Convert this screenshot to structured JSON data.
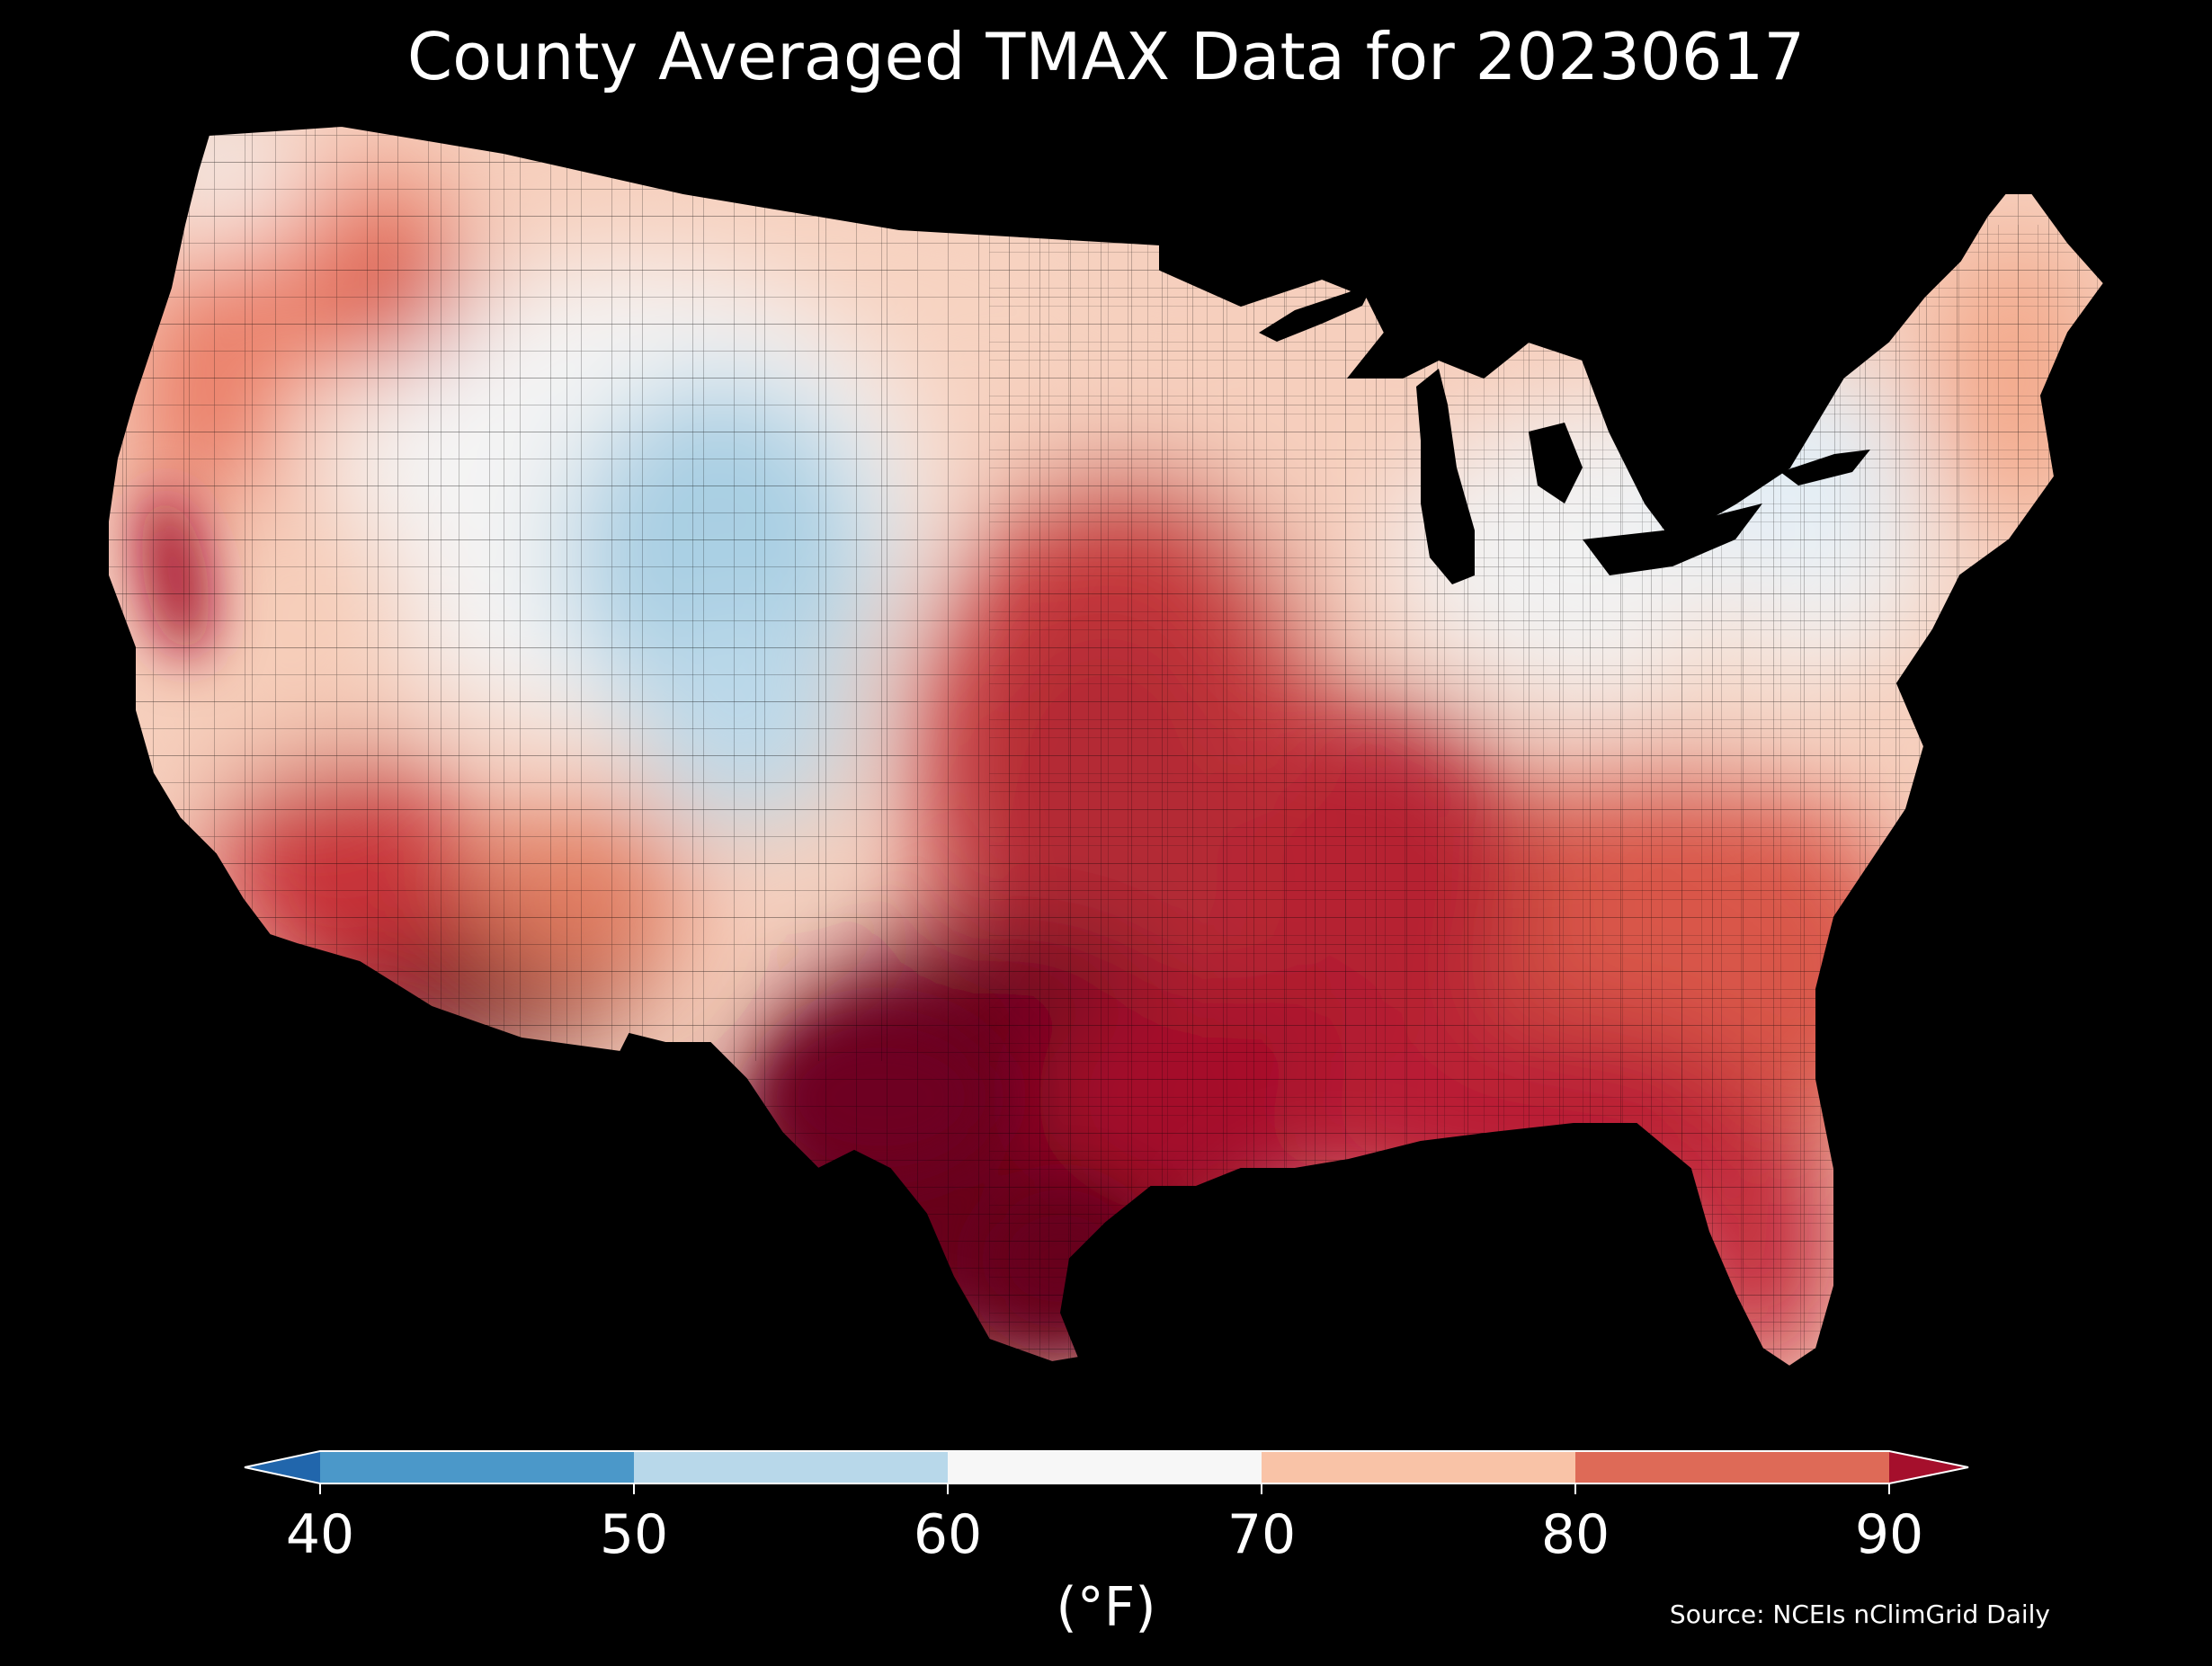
{
  "title": "County Averaged TMAX Data for 20230617",
  "colorbar": {
    "unit": "(°F)",
    "ticks": [
      "40",
      "50",
      "60",
      "70",
      "80",
      "90"
    ],
    "bins": [
      {
        "range": "<40",
        "color": "#2166ac"
      },
      {
        "range": "40-50",
        "color": "#4b98c9"
      },
      {
        "range": "50-60",
        "color": "#b8d8ea"
      },
      {
        "range": "60-70",
        "color": "#f7f7f7"
      },
      {
        "range": "70-80",
        "color": "#f9c3a7"
      },
      {
        "range": "80-90",
        "color": "#de6a57"
      },
      {
        "range": ">90",
        "color": "#a50f2c"
      }
    ]
  },
  "source": "Source: NCEIs nClimGrid Daily",
  "map": {
    "region": "contiguous-united-states",
    "background": "#000000",
    "regions": [
      {
        "name": "pacific-northwest-coast",
        "color": "#fbe0d3"
      },
      {
        "name": "idaho-montana-west",
        "color": "#e9765e"
      },
      {
        "name": "northern-plains",
        "color": "#f9c3a7"
      },
      {
        "name": "central-rockies",
        "color": "#f4f4f4"
      },
      {
        "name": "wyoming-colorado-high-terrain",
        "color": "#a9cfe3"
      },
      {
        "name": "california-central-valley",
        "color": "#a50f2c"
      },
      {
        "name": "desert-southwest",
        "color": "#67001f"
      },
      {
        "name": "southern-plains-texas",
        "color": "#67001f"
      },
      {
        "name": "central-plains",
        "color": "#c93b3e"
      },
      {
        "name": "midwest-north",
        "color": "#f6cfbd"
      },
      {
        "name": "ohio-valley-northeast",
        "color": "#f2f2f2"
      },
      {
        "name": "appalachians",
        "color": "#f6d8c8"
      },
      {
        "name": "southeast",
        "color": "#d9574a"
      },
      {
        "name": "gulf-coast-florida",
        "color": "#b91d35"
      },
      {
        "name": "new-england",
        "color": "#f3a98b"
      }
    ]
  }
}
